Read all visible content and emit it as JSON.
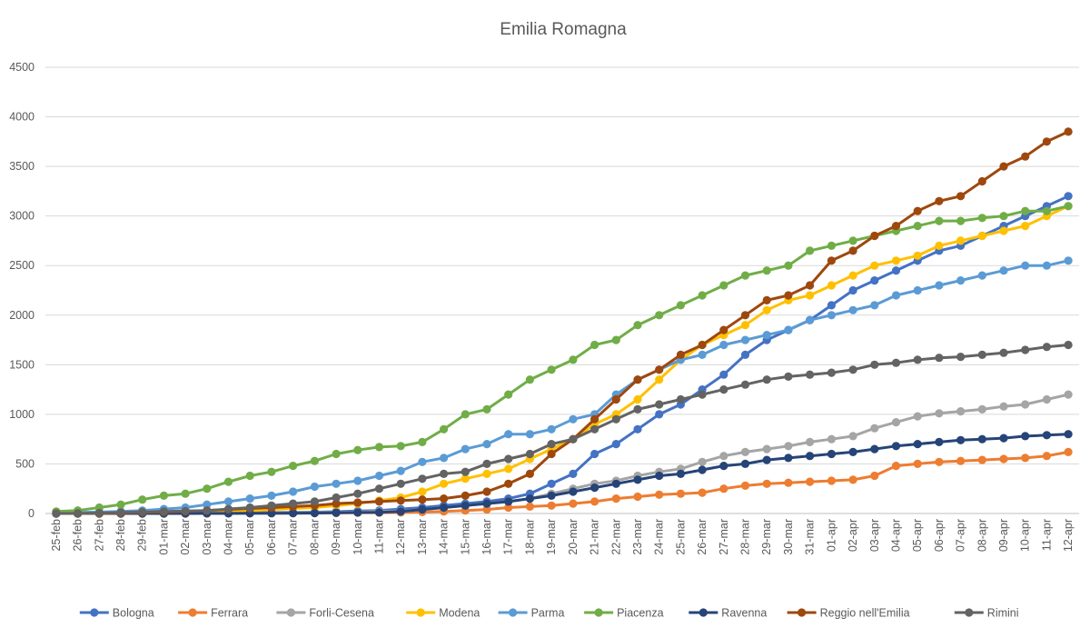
{
  "chart_data": {
    "type": "line",
    "title": "Emilia Romagna",
    "xlabel": "",
    "ylabel": "",
    "ylim": [
      0,
      4500
    ],
    "yticks": [
      0,
      500,
      1000,
      1500,
      2000,
      2500,
      3000,
      3500,
      4000,
      4500
    ],
    "grid": true,
    "legend_position": "bottom",
    "x": [
      "25-feb",
      "26-feb",
      "27-feb",
      "28-feb",
      "29-feb",
      "01-mar",
      "02-mar",
      "03-mar",
      "04-mar",
      "05-mar",
      "06-mar",
      "07-mar",
      "08-mar",
      "09-mar",
      "10-mar",
      "11-mar",
      "12-mar",
      "13-mar",
      "14-mar",
      "15-mar",
      "16-mar",
      "17-mar",
      "18-mar",
      "19-mar",
      "20-mar",
      "21-mar",
      "22-mar",
      "23-mar",
      "24-mar",
      "25-mar",
      "26-mar",
      "27-mar",
      "28-mar",
      "29-mar",
      "30-mar",
      "31-mar",
      "01-apr",
      "02-apr",
      "03-apr",
      "04-apr",
      "05-apr",
      "06-apr",
      "07-apr",
      "08-apr",
      "09-apr",
      "10-apr",
      "11-apr",
      "12-apr"
    ],
    "series": [
      {
        "name": "Bologna",
        "color": "#4472c4",
        "values": [
          0,
          0,
          0,
          0,
          1,
          2,
          3,
          4,
          5,
          7,
          10,
          12,
          14,
          18,
          25,
          30,
          45,
          60,
          80,
          100,
          120,
          150,
          200,
          300,
          400,
          600,
          700,
          850,
          1000,
          1100,
          1250,
          1400,
          1600,
          1750,
          1850,
          1950,
          2100,
          2250,
          2350,
          2450,
          2550,
          2650,
          2700,
          2800,
          2900,
          3000,
          3100,
          3200
        ]
      },
      {
        "name": "Ferrara",
        "color": "#ed7d31",
        "values": [
          0,
          0,
          0,
          0,
          0,
          0,
          0,
          0,
          1,
          2,
          2,
          3,
          4,
          5,
          6,
          8,
          10,
          15,
          20,
          30,
          40,
          60,
          70,
          80,
          100,
          120,
          150,
          170,
          190,
          200,
          210,
          250,
          280,
          300,
          310,
          320,
          330,
          340,
          380,
          480,
          500,
          520,
          530,
          540,
          550,
          560,
          580,
          620
        ]
      },
      {
        "name": "Forli-Cesena",
        "color": "#a5a5a5",
        "values": [
          0,
          0,
          0,
          0,
          0,
          0,
          1,
          2,
          3,
          4,
          6,
          8,
          10,
          12,
          15,
          20,
          25,
          40,
          60,
          80,
          100,
          120,
          150,
          200,
          250,
          300,
          330,
          380,
          420,
          450,
          520,
          580,
          620,
          650,
          680,
          720,
          750,
          780,
          860,
          920,
          980,
          1010,
          1030,
          1050,
          1080,
          1100,
          1150,
          1200
        ]
      },
      {
        "name": "Modena",
        "color": "#ffc000",
        "values": [
          5,
          5,
          6,
          8,
          10,
          15,
          18,
          20,
          25,
          30,
          40,
          50,
          60,
          80,
          100,
          130,
          160,
          220,
          300,
          350,
          400,
          450,
          550,
          650,
          750,
          900,
          1000,
          1150,
          1350,
          1550,
          1700,
          1800,
          1900,
          2050,
          2150,
          2200,
          2300,
          2400,
          2500,
          2550,
          2600,
          2700,
          2750,
          2800,
          2850,
          2900,
          3000,
          3100
        ]
      },
      {
        "name": "Parma",
        "color": "#5b9bd5",
        "values": [
          10,
          12,
          15,
          20,
          30,
          45,
          60,
          90,
          120,
          150,
          180,
          220,
          270,
          300,
          330,
          380,
          430,
          520,
          560,
          650,
          700,
          800,
          800,
          850,
          950,
          1000,
          1200,
          1350,
          1450,
          1550,
          1600,
          1700,
          1750,
          1800,
          1850,
          1950,
          2000,
          2050,
          2100,
          2200,
          2250,
          2300,
          2350,
          2400,
          2450,
          2500,
          2500,
          2550
        ]
      },
      {
        "name": "Piacenza",
        "color": "#70ad47",
        "values": [
          20,
          30,
          60,
          90,
          140,
          180,
          200,
          250,
          320,
          380,
          420,
          480,
          530,
          600,
          640,
          670,
          680,
          720,
          850,
          1000,
          1050,
          1200,
          1350,
          1450,
          1550,
          1700,
          1750,
          1900,
          2000,
          2100,
          2200,
          2300,
          2400,
          2450,
          2500,
          2650,
          2700,
          2750,
          2800,
          2850,
          2900,
          2950,
          2950,
          2980,
          3000,
          3050,
          3050,
          3100
        ]
      },
      {
        "name": "Ravenna",
        "color": "#264478",
        "values": [
          0,
          0,
          0,
          0,
          0,
          0,
          0,
          1,
          1,
          2,
          3,
          4,
          5,
          8,
          10,
          12,
          20,
          40,
          60,
          80,
          100,
          120,
          150,
          180,
          220,
          260,
          300,
          340,
          380,
          400,
          440,
          480,
          500,
          540,
          560,
          580,
          600,
          620,
          650,
          680,
          700,
          720,
          740,
          750,
          760,
          780,
          790,
          800
        ]
      },
      {
        "name": "Reggio nell'Emilia",
        "color": "#9e480e",
        "values": [
          0,
          0,
          0,
          5,
          10,
          15,
          20,
          30,
          40,
          50,
          60,
          70,
          80,
          100,
          110,
          120,
          130,
          140,
          150,
          180,
          220,
          300,
          400,
          600,
          750,
          950,
          1150,
          1350,
          1450,
          1600,
          1700,
          1850,
          2000,
          2150,
          2200,
          2300,
          2550,
          2650,
          2800,
          2900,
          3050,
          3150,
          3200,
          3350,
          3500,
          3600,
          3750,
          3850
        ]
      },
      {
        "name": "Rimini",
        "color": "#636363",
        "values": [
          0,
          0,
          5,
          10,
          15,
          20,
          25,
          30,
          45,
          60,
          80,
          100,
          120,
          160,
          200,
          250,
          300,
          350,
          400,
          420,
          500,
          550,
          600,
          700,
          750,
          850,
          950,
          1050,
          1100,
          1150,
          1200,
          1250,
          1300,
          1350,
          1380,
          1400,
          1420,
          1450,
          1500,
          1520,
          1550,
          1570,
          1580,
          1600,
          1620,
          1650,
          1680,
          1700
        ]
      }
    ]
  }
}
